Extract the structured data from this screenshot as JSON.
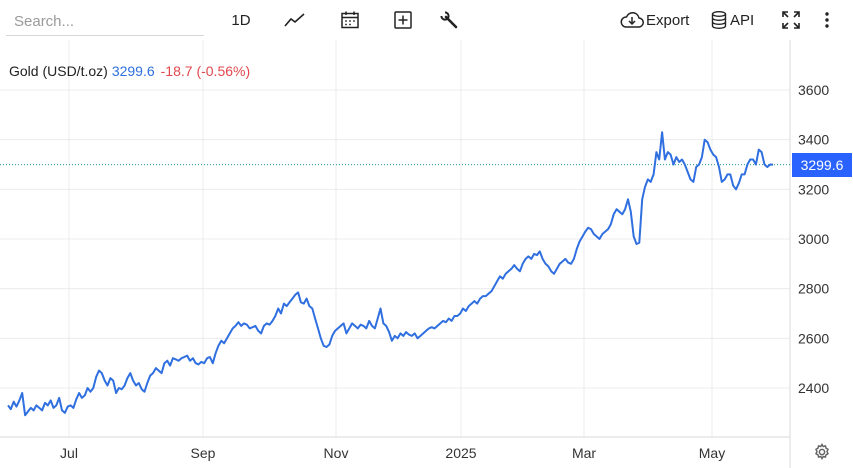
{
  "toolbar": {
    "search_placeholder": "Search...",
    "period_label": "1D",
    "export_label": "Export",
    "api_label": "API",
    "icons": [
      "line-chart-icon",
      "calendar-icon",
      "plus-box-icon",
      "wrench-icon",
      "cloud-download-icon",
      "database-icon",
      "fullscreen-icon",
      "more-vertical-icon"
    ]
  },
  "legend": {
    "name": "Gold (USD/t.oz)",
    "value": "3299.6",
    "change": "-18.7 (-0.56%)",
    "value_color": "#2f6fe0",
    "change_color": "#e0484e"
  },
  "last_price_tag": "3299.6",
  "colors": {
    "line": "#2f6fe0",
    "price_tag_bg": "#2962ff",
    "grid": "#ececec",
    "last_price_line": "#2a9d8f"
  },
  "chart_data": {
    "type": "line",
    "series": [
      {
        "name": "Gold (USD/t.oz)",
        "values": [
          2330,
          2315,
          2345,
          2325,
          2350,
          2380,
          2290,
          2305,
          2320,
          2310,
          2330,
          2320,
          2310,
          2340,
          2330,
          2350,
          2320,
          2330,
          2360,
          2310,
          2300,
          2325,
          2330,
          2320,
          2355,
          2380,
          2360,
          2370,
          2400,
          2385,
          2400,
          2445,
          2470,
          2460,
          2430,
          2410,
          2440,
          2430,
          2380,
          2400,
          2395,
          2410,
          2440,
          2460,
          2430,
          2410,
          2420,
          2395,
          2385,
          2420,
          2450,
          2460,
          2480,
          2470,
          2460,
          2500,
          2510,
          2490,
          2520,
          2515,
          2510,
          2520,
          2525,
          2530,
          2510,
          2520,
          2500,
          2495,
          2505,
          2500,
          2520,
          2525,
          2500,
          2540,
          2570,
          2590,
          2580,
          2600,
          2620,
          2640,
          2650,
          2665,
          2650,
          2660,
          2655,
          2640,
          2645,
          2650,
          2630,
          2620,
          2650,
          2660,
          2655,
          2670,
          2690,
          2720,
          2700,
          2740,
          2730,
          2745,
          2760,
          2775,
          2785,
          2745,
          2740,
          2760,
          2730,
          2720,
          2680,
          2640,
          2600,
          2570,
          2565,
          2575,
          2610,
          2630,
          2640,
          2650,
          2660,
          2620,
          2640,
          2660,
          2650,
          2640,
          2655,
          2650,
          2640,
          2670,
          2650,
          2640,
          2680,
          2720,
          2660,
          2650,
          2625,
          2590,
          2610,
          2600,
          2620,
          2610,
          2625,
          2615,
          2610,
          2620,
          2600,
          2610,
          2620,
          2630,
          2640,
          2645,
          2640,
          2650,
          2660,
          2670,
          2665,
          2680,
          2670,
          2690,
          2690,
          2700,
          2720,
          2710,
          2730,
          2740,
          2750,
          2740,
          2760,
          2770,
          2770,
          2780,
          2790,
          2810,
          2830,
          2850,
          2840,
          2860,
          2870,
          2880,
          2895,
          2880,
          2870,
          2900,
          2920,
          2930,
          2920,
          2940,
          2935,
          2950,
          2920,
          2900,
          2890,
          2870,
          2860,
          2880,
          2900,
          2910,
          2920,
          2905,
          2900,
          2920,
          2960,
          2990,
          3010,
          3030,
          3045,
          3040,
          3020,
          3010,
          3000,
          3020,
          3030,
          3040,
          3060,
          3100,
          3120,
          3110,
          3100,
          3120,
          3160,
          3110,
          3010,
          2980,
          2985,
          3160,
          3210,
          3240,
          3230,
          3260,
          3350,
          3320,
          3430,
          3320,
          3350,
          3340,
          3300,
          3330,
          3310,
          3320,
          3300,
          3270,
          3240,
          3230,
          3290,
          3300,
          3330,
          3400,
          3390,
          3360,
          3340,
          3330,
          3290,
          3230,
          3240,
          3260,
          3260,
          3215,
          3200,
          3225,
          3260,
          3260,
          3300,
          3320,
          3320,
          3300,
          3360,
          3350,
          3300,
          3290,
          3300,
          3299.6
        ]
      }
    ],
    "x_tick_labels": [
      "Jul",
      "Sep",
      "Nov",
      "2025",
      "Mar",
      "May"
    ],
    "y_tick_labels": [
      "2400",
      "2600",
      "2800",
      "3000",
      "3200",
      "3400",
      "3600"
    ],
    "y_ticks": [
      2400,
      2600,
      2800,
      3000,
      3200,
      3400,
      3600
    ],
    "ylim": [
      2200,
      3800
    ],
    "last_value": 3299.6,
    "grid": true,
    "title": "",
    "xlabel": "",
    "ylabel": ""
  }
}
